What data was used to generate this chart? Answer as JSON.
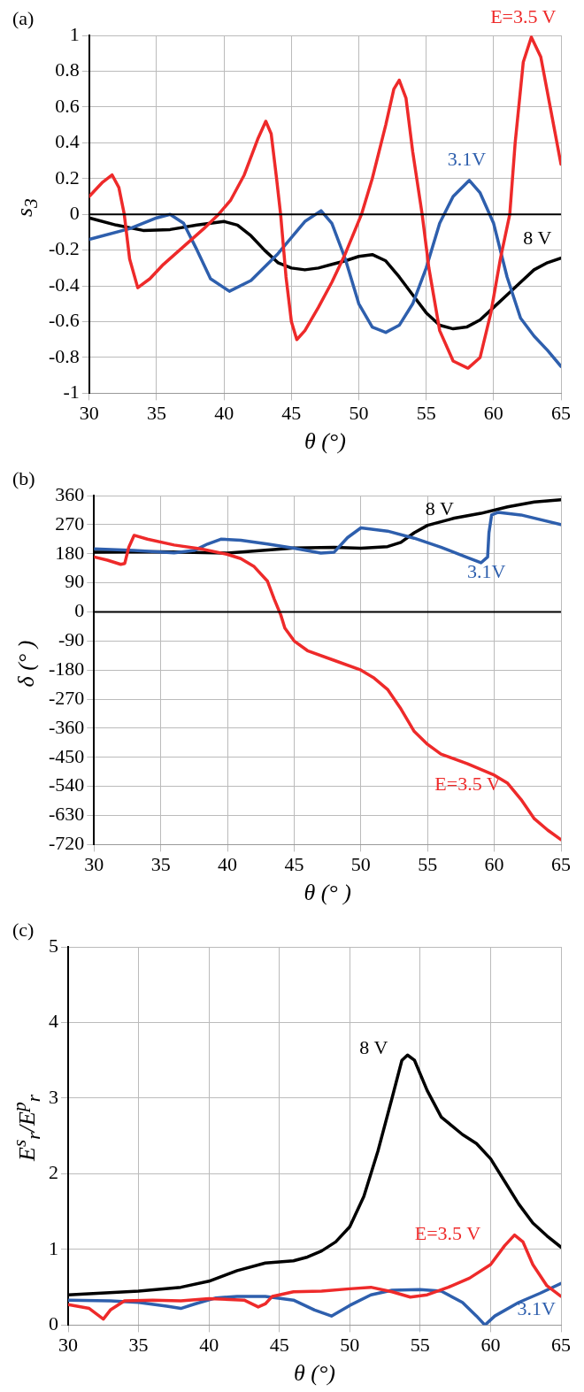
{
  "chart_data": [
    {
      "type": "line",
      "title": "(a)",
      "xlabel": "θ (°)",
      "ylabel": "s$_{3}$",
      "xlim": [
        30,
        65
      ],
      "xticks": [
        30,
        35,
        40,
        45,
        50,
        55,
        60,
        65
      ],
      "ylim": [
        -1,
        1
      ],
      "yticks": [
        -1,
        -0.8,
        -0.6,
        -0.4,
        -0.2,
        0,
        0.2,
        0.4,
        0.6,
        0.8,
        1
      ],
      "grid": true,
      "marker": "none",
      "ref_lines": [
        {
          "axis": "y",
          "value": 0,
          "color": "#000000"
        }
      ],
      "series": [
        {
          "name": "E=3.5 V",
          "color": "#ee2a2a",
          "x": [
            30,
            31,
            31.7,
            32.2,
            32.6,
            33,
            33.6,
            34.5,
            35.5,
            37,
            38.5,
            39.6,
            40.5,
            41.5,
            42.5,
            43.1,
            43.5,
            43.9,
            44.2,
            44.6,
            45,
            45.4,
            46,
            47,
            48,
            49,
            50.2,
            51,
            52,
            52.6,
            53,
            53.5,
            54,
            54.7,
            55.2,
            56,
            57,
            58.1,
            59,
            59.8,
            60.5,
            61.2,
            61.6,
            62.2,
            62.8,
            63.5,
            64.2,
            65
          ],
          "values": [
            0.1,
            0.18,
            0.22,
            0.15,
            0,
            -0.25,
            -0.41,
            -0.36,
            -0.28,
            -0.18,
            -0.08,
            0,
            0.08,
            0.22,
            0.42,
            0.52,
            0.45,
            0.2,
            0,
            -0.35,
            -0.6,
            -0.7,
            -0.65,
            -0.52,
            -0.38,
            -0.22,
            0,
            0.2,
            0.5,
            0.7,
            0.75,
            0.65,
            0.35,
            0,
            -0.3,
            -0.65,
            -0.82,
            -0.86,
            -0.8,
            -0.55,
            -0.25,
            0,
            0.4,
            0.85,
            0.99,
            0.88,
            0.6,
            0.28
          ]
        },
        {
          "name": "3.1V",
          "color": "#2e5fad",
          "x": [
            30,
            33,
            35,
            36,
            37,
            38,
            39,
            40.4,
            42,
            44,
            46,
            47.2,
            48,
            49,
            50,
            51,
            52,
            53,
            54,
            55,
            56,
            57,
            58.2,
            59,
            60,
            61,
            62,
            63,
            64,
            65
          ],
          "values": [
            -0.14,
            -0.08,
            -0.02,
            0,
            -0.05,
            -0.2,
            -0.36,
            -0.43,
            -0.37,
            -0.22,
            -0.04,
            0.02,
            -0.05,
            -0.25,
            -0.5,
            -0.63,
            -0.66,
            -0.62,
            -0.5,
            -0.3,
            -0.05,
            0.1,
            0.19,
            0.12,
            -0.05,
            -0.35,
            -0.58,
            -0.68,
            -0.76,
            -0.85
          ]
        },
        {
          "name": "8 V",
          "color": "#000000",
          "x": [
            30,
            32,
            34,
            36,
            38,
            40,
            41,
            42,
            43,
            44,
            45,
            46,
            47,
            48,
            49,
            50,
            51,
            52,
            53,
            54,
            55,
            56,
            57,
            58,
            59,
            60,
            61,
            62,
            63,
            64,
            65
          ],
          "values": [
            -0.02,
            -0.06,
            -0.09,
            -0.085,
            -0.06,
            -0.04,
            -0.06,
            -0.12,
            -0.2,
            -0.27,
            -0.3,
            -0.31,
            -0.3,
            -0.28,
            -0.26,
            -0.235,
            -0.225,
            -0.26,
            -0.35,
            -0.45,
            -0.55,
            -0.62,
            -0.64,
            -0.63,
            -0.59,
            -0.52,
            -0.45,
            -0.38,
            -0.31,
            -0.27,
            -0.245
          ]
        }
      ]
    },
    {
      "type": "line",
      "title": "(b)",
      "xlabel": "θ (° )",
      "ylabel": "δ (°  )",
      "xlim": [
        30,
        65
      ],
      "xticks": [
        30,
        35,
        40,
        45,
        50,
        55,
        60,
        65
      ],
      "ylim": [
        -720,
        360
      ],
      "yticks": [
        -720,
        -630,
        -540,
        -450,
        -360,
        -270,
        -180,
        -90,
        0,
        90,
        180,
        270,
        360
      ],
      "grid": true,
      "marker": "none",
      "ref_lines": [
        {
          "axis": "y",
          "value": 0,
          "color": "#000000"
        }
      ],
      "series": [
        {
          "name": "E=3.5 V",
          "color": "#ee2a2a",
          "x": [
            30,
            31,
            32,
            32.3,
            32.6,
            33,
            34,
            36,
            38,
            40,
            41,
            42,
            43,
            43.5,
            44,
            44.3,
            45,
            46,
            48,
            50,
            51,
            52,
            53,
            54,
            55,
            56,
            58,
            60,
            61,
            62,
            63,
            64,
            65
          ],
          "values": [
            170,
            160,
            147,
            150,
            200,
            237,
            225,
            207,
            195,
            178,
            165,
            140,
            95,
            40,
            -10,
            -50,
            -90,
            -120,
            -150,
            -180,
            -205,
            -240,
            -300,
            -370,
            -410,
            -440,
            -470,
            -505,
            -530,
            -580,
            -640,
            -675,
            -705
          ]
        },
        {
          "name": "3.1V",
          "color": "#2e5fad",
          "x": [
            30,
            33,
            36,
            37.5,
            38.5,
            39.5,
            41,
            43,
            45,
            47,
            48,
            49,
            50,
            52,
            54,
            56,
            58,
            59,
            59.5,
            59.6,
            59.8,
            60.3,
            62,
            65
          ],
          "values": [
            195,
            190,
            183,
            190,
            210,
            225,
            222,
            210,
            197,
            182,
            185,
            230,
            260,
            250,
            228,
            200,
            168,
            152,
            170,
            245,
            300,
            308,
            300,
            270
          ]
        },
        {
          "name": "8 V",
          "color": "#000000",
          "x": [
            30,
            35,
            40,
            45,
            48,
            50,
            52,
            53,
            54,
            55,
            57,
            59,
            61,
            63,
            65
          ],
          "values": [
            185,
            186,
            182,
            198,
            200,
            197,
            202,
            215,
            245,
            268,
            290,
            305,
            325,
            340,
            347
          ]
        }
      ]
    },
    {
      "type": "line",
      "title": "(c)",
      "xlabel": "θ (°)",
      "ylabel": "E$^{s}$$_{r}$/E$^{p}$$_{r}$",
      "xlim": [
        30,
        65
      ],
      "xticks": [
        30,
        35,
        40,
        45,
        50,
        55,
        60,
        65
      ],
      "ylim": [
        0,
        5
      ],
      "yticks": [
        0,
        1,
        2,
        3,
        4,
        5
      ],
      "grid": true,
      "marker": "none",
      "series": [
        {
          "name": "8 V",
          "color": "#000000",
          "x": [
            30,
            35,
            38,
            40,
            42,
            44,
            46,
            47,
            48,
            49,
            50,
            51,
            52,
            53,
            53.7,
            54.1,
            54.6,
            55.5,
            56.5,
            58,
            59,
            60,
            61,
            62,
            63,
            64,
            65
          ],
          "values": [
            0.4,
            0.45,
            0.5,
            0.58,
            0.72,
            0.82,
            0.85,
            0.9,
            0.98,
            1.1,
            1.3,
            1.7,
            2.3,
            3,
            3.5,
            3.57,
            3.5,
            3.1,
            2.75,
            2.52,
            2.4,
            2.2,
            1.9,
            1.6,
            1.35,
            1.18,
            1.03
          ]
        },
        {
          "name": "E=3.5 V",
          "color": "#ee2a2a",
          "x": [
            30,
            31.5,
            32.5,
            33,
            34,
            36,
            38,
            40,
            42.5,
            43.5,
            44,
            44.5,
            46,
            48,
            50,
            51.5,
            53,
            54.3,
            55.5,
            57,
            58.5,
            60,
            61,
            61.7,
            62.3,
            63,
            64,
            65
          ],
          "values": [
            0.27,
            0.22,
            0.08,
            0.2,
            0.32,
            0.33,
            0.32,
            0.35,
            0.33,
            0.24,
            0.28,
            0.38,
            0.44,
            0.45,
            0.48,
            0.5,
            0.44,
            0.37,
            0.4,
            0.5,
            0.62,
            0.8,
            1.05,
            1.19,
            1.1,
            0.8,
            0.52,
            0.38
          ]
        },
        {
          "name": "3.1V",
          "color": "#2e5fad",
          "x": [
            30,
            33,
            35,
            37,
            38,
            39,
            40.5,
            42,
            44,
            46,
            47.5,
            48.7,
            50,
            51.5,
            53,
            55,
            56.5,
            58,
            59,
            59.6,
            60.3,
            62,
            63.5,
            65
          ],
          "values": [
            0.33,
            0.32,
            0.3,
            0.25,
            0.22,
            0.28,
            0.36,
            0.38,
            0.38,
            0.33,
            0.2,
            0.12,
            0.26,
            0.4,
            0.46,
            0.47,
            0.45,
            0.3,
            0.12,
            0,
            0.12,
            0.3,
            0.42,
            0.55
          ]
        }
      ]
    }
  ]
}
